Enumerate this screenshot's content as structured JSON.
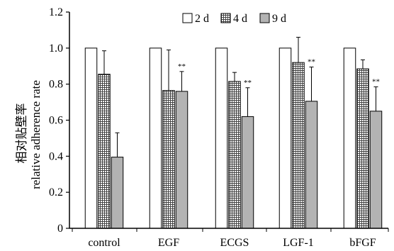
{
  "chart_data": {
    "type": "bar",
    "title": "",
    "ylabel_cn": "相对贴壁率",
    "ylabel": "relative adherence rate",
    "xlabel": "",
    "ylim": [
      0,
      1.2
    ],
    "yticks": [
      "0",
      "0.2",
      "0.4",
      "0.6",
      "0.8",
      "1.0",
      "1.2"
    ],
    "categories": [
      "control",
      "EGF",
      "ECGS",
      "LGF-1",
      "bFGF"
    ],
    "legend_position": "top-right",
    "series": [
      {
        "name": "2 d",
        "pattern": "white",
        "values": [
          1.0,
          1.0,
          1.0,
          1.0,
          1.0
        ],
        "errors": [
          null,
          null,
          null,
          null,
          null
        ]
      },
      {
        "name": "4 d",
        "pattern": "grid",
        "values": [
          0.855,
          0.765,
          0.815,
          0.92,
          0.885
        ],
        "errors": [
          0.13,
          0.225,
          0.05,
          0.14,
          0.05
        ]
      },
      {
        "name": "9 d",
        "pattern": "gray",
        "values": [
          0.395,
          0.76,
          0.62,
          0.705,
          0.65
        ],
        "errors": [
          0.135,
          0.11,
          0.16,
          0.19,
          0.135
        ]
      }
    ],
    "annotations": [
      {
        "category": "EGF",
        "series": "9 d",
        "text": "**"
      },
      {
        "category": "ECGS",
        "series": "9 d",
        "text": "**"
      },
      {
        "category": "LGF-1",
        "series": "9 d",
        "text": "**"
      },
      {
        "category": "bFGF",
        "series": "9 d",
        "text": "**"
      }
    ],
    "colors": {
      "white": "#ffffff",
      "gray": "#b3b3b3",
      "grid_line": "#444444",
      "axis": "#000000"
    }
  }
}
